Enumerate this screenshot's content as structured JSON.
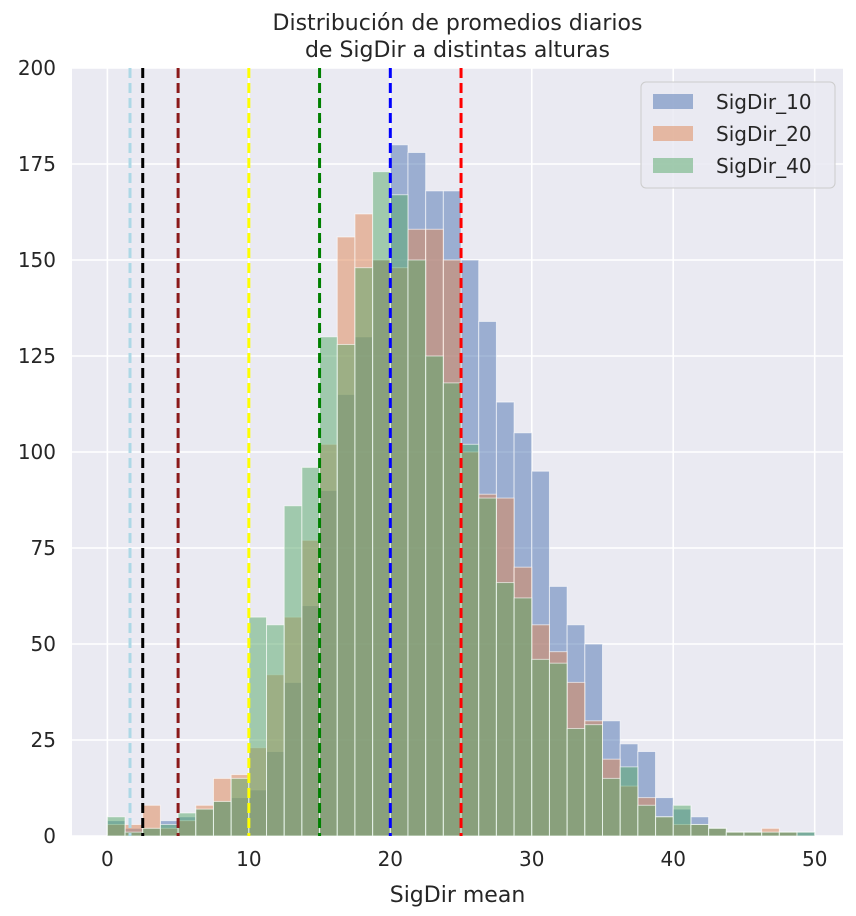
{
  "chart_data": {
    "type": "histogram",
    "title": [
      "Distribución de promedios diarios",
      "de SigDir a distintas alturas"
    ],
    "xlabel": "SigDir mean",
    "ylabel": "",
    "xlim": [
      -2.5,
      52
    ],
    "ylim": [
      0,
      200
    ],
    "xticks": [
      "0",
      "10",
      "20",
      "30",
      "40",
      "50"
    ],
    "yticks": [
      "0",
      "25",
      "50",
      "75",
      "100",
      "125",
      "150",
      "175",
      "200"
    ],
    "grid": true,
    "legend_position": "top-right",
    "series": [
      {
        "name": "SigDir_10",
        "color": "#4c72b0",
        "bins": [
          [
            0,
            1.25,
            4
          ],
          [
            1.25,
            2.5,
            2
          ],
          [
            2.5,
            3.75,
            2
          ],
          [
            3.75,
            5,
            4
          ],
          [
            5,
            6.25,
            5
          ],
          [
            6.25,
            7.5,
            7
          ],
          [
            7.5,
            8.75,
            9
          ],
          [
            8.75,
            10,
            10
          ],
          [
            10,
            11.25,
            12
          ],
          [
            11.25,
            12.5,
            22
          ],
          [
            12.5,
            13.75,
            40
          ],
          [
            13.75,
            15,
            60
          ],
          [
            15,
            16.25,
            90
          ],
          [
            16.25,
            17.5,
            115
          ],
          [
            17.5,
            18.75,
            130
          ],
          [
            18.75,
            20,
            150
          ],
          [
            20,
            21.25,
            180
          ],
          [
            21.25,
            22.5,
            178
          ],
          [
            22.5,
            23.75,
            168
          ],
          [
            23.75,
            25,
            168
          ],
          [
            25,
            26.25,
            150
          ],
          [
            26.25,
            27.5,
            134
          ],
          [
            27.5,
            28.75,
            113
          ],
          [
            28.75,
            30,
            105
          ],
          [
            30,
            31.25,
            95
          ],
          [
            31.25,
            32.5,
            65
          ],
          [
            32.5,
            33.75,
            55
          ],
          [
            33.75,
            35,
            50
          ],
          [
            35,
            36.25,
            30
          ],
          [
            36.25,
            37.5,
            24
          ],
          [
            37.5,
            38.75,
            22
          ],
          [
            38.75,
            40,
            10
          ],
          [
            40,
            41.25,
            7
          ],
          [
            41.25,
            42.5,
            5
          ],
          [
            42.5,
            43.75,
            2
          ],
          [
            43.75,
            45,
            1
          ],
          [
            45,
            46.25,
            1
          ],
          [
            46.25,
            47.5,
            1
          ],
          [
            47.5,
            48.75,
            1
          ],
          [
            48.75,
            50,
            1
          ]
        ]
      },
      {
        "name": "SigDir_20",
        "color": "#dd8452",
        "bins": [
          [
            0,
            1.25,
            3
          ],
          [
            1.25,
            2.5,
            3
          ],
          [
            2.5,
            3.75,
            8
          ],
          [
            3.75,
            5,
            2
          ],
          [
            5,
            6.25,
            4
          ],
          [
            6.25,
            7.5,
            8
          ],
          [
            7.5,
            8.75,
            15
          ],
          [
            8.75,
            10,
            16
          ],
          [
            10,
            11.25,
            23
          ],
          [
            11.25,
            12.5,
            42
          ],
          [
            12.5,
            13.75,
            57
          ],
          [
            13.75,
            15,
            77
          ],
          [
            15,
            16.25,
            102
          ],
          [
            16.25,
            17.5,
            156
          ],
          [
            17.5,
            18.75,
            162
          ],
          [
            18.75,
            20,
            150
          ],
          [
            20,
            21.25,
            148
          ],
          [
            21.25,
            22.5,
            158
          ],
          [
            22.5,
            23.75,
            158
          ],
          [
            23.75,
            25,
            150
          ],
          [
            25,
            26.25,
            100
          ],
          [
            26.25,
            27.5,
            89
          ],
          [
            27.5,
            28.75,
            88
          ],
          [
            28.75,
            30,
            70
          ],
          [
            30,
            31.25,
            55
          ],
          [
            31.25,
            32.5,
            48
          ],
          [
            32.5,
            33.75,
            40
          ],
          [
            33.75,
            35,
            30
          ],
          [
            35,
            36.25,
            20
          ],
          [
            36.25,
            37.5,
            13
          ],
          [
            37.5,
            38.75,
            10
          ],
          [
            38.75,
            40,
            5
          ],
          [
            40,
            41.25,
            3
          ],
          [
            41.25,
            42.5,
            3
          ],
          [
            42.5,
            43.75,
            2
          ],
          [
            43.75,
            45,
            1
          ],
          [
            45,
            46.25,
            1
          ],
          [
            46.25,
            47.5,
            2
          ],
          [
            47.5,
            48.75,
            1
          ],
          [
            48.75,
            50,
            0
          ]
        ]
      },
      {
        "name": "SigDir_40",
        "color": "#55a868",
        "bins": [
          [
            0,
            1.25,
            5
          ],
          [
            1.25,
            2.5,
            1
          ],
          [
            2.5,
            3.75,
            2
          ],
          [
            3.75,
            5,
            3
          ],
          [
            5,
            6.25,
            6
          ],
          [
            6.25,
            7.5,
            7
          ],
          [
            7.5,
            8.75,
            9
          ],
          [
            8.75,
            10,
            15
          ],
          [
            10,
            11.25,
            57
          ],
          [
            11.25,
            12.5,
            55
          ],
          [
            12.5,
            13.75,
            86
          ],
          [
            13.75,
            15,
            96
          ],
          [
            15,
            16.25,
            130
          ],
          [
            16.25,
            17.5,
            128
          ],
          [
            17.5,
            18.75,
            148
          ],
          [
            18.75,
            20,
            173
          ],
          [
            20,
            21.25,
            167
          ],
          [
            21.25,
            22.5,
            150
          ],
          [
            22.5,
            23.75,
            125
          ],
          [
            23.75,
            25,
            118
          ],
          [
            25,
            26.25,
            102
          ],
          [
            26.25,
            27.5,
            88
          ],
          [
            27.5,
            28.75,
            66
          ],
          [
            28.75,
            30,
            62
          ],
          [
            30,
            31.25,
            46
          ],
          [
            31.25,
            32.5,
            45
          ],
          [
            32.5,
            33.75,
            28
          ],
          [
            33.75,
            35,
            29
          ],
          [
            35,
            36.25,
            15
          ],
          [
            36.25,
            37.5,
            18
          ],
          [
            37.5,
            38.75,
            8
          ],
          [
            38.75,
            40,
            5
          ],
          [
            40,
            41.25,
            8
          ],
          [
            41.25,
            42.5,
            3
          ],
          [
            42.5,
            43.75,
            2
          ],
          [
            43.75,
            45,
            1
          ],
          [
            45,
            46.25,
            1
          ],
          [
            46.25,
            47.5,
            1
          ],
          [
            47.5,
            48.75,
            1
          ],
          [
            48.75,
            50,
            1
          ]
        ]
      }
    ],
    "vlines": [
      {
        "x": 1.6,
        "color": "#add8e6"
      },
      {
        "x": 2.5,
        "color": "#000000"
      },
      {
        "x": 5,
        "color": "#8b1a1a"
      },
      {
        "x": 10,
        "color": "#ffff00"
      },
      {
        "x": 15,
        "color": "#008000"
      },
      {
        "x": 20,
        "color": "#0000ff"
      },
      {
        "x": 25,
        "color": "#ff0000"
      }
    ],
    "colors": {
      "plot_background": "#eaeaf2",
      "grid": "#ffffff",
      "legend_background": "#eaeaf2",
      "legend_border": "#cccccc"
    }
  }
}
